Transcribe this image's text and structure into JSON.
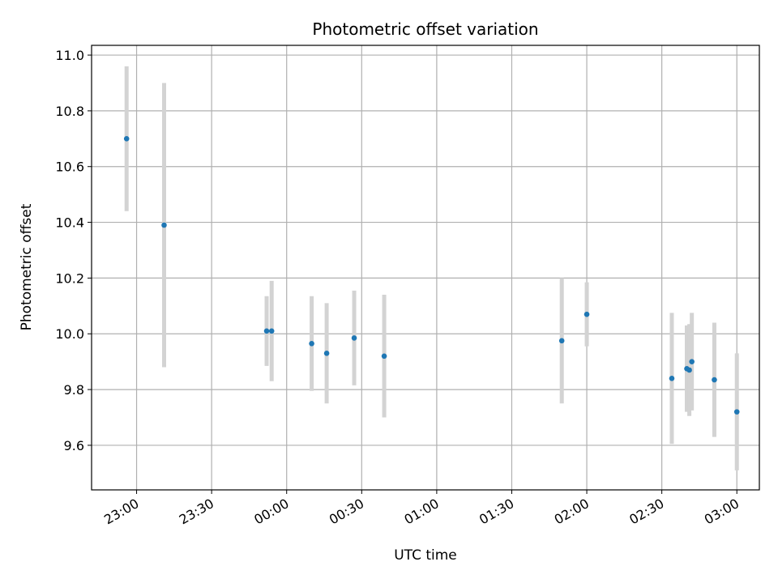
{
  "chart_data": {
    "type": "scatter",
    "title": "Photometric offset variation",
    "xlabel": "UTC time",
    "ylabel": "Photometric offset",
    "x_axis_kind": "time",
    "xlim": [
      "22:42",
      "03:09"
    ],
    "ylim": [
      9.44,
      11.035
    ],
    "grid": true,
    "x_ticks": [
      "23:00",
      "23:30",
      "00:00",
      "00:30",
      "01:00",
      "01:30",
      "02:00",
      "02:30",
      "03:00"
    ],
    "y_ticks": [
      "9.6",
      "9.8",
      "10.0",
      "10.2",
      "10.4",
      "10.6",
      "10.8",
      "11.0"
    ],
    "y_tick_values": [
      9.6,
      9.8,
      10.0,
      10.2,
      10.4,
      10.6,
      10.8,
      11.0
    ],
    "marker_color": "#1f77b4",
    "errorbar_color": "#d3d3d3",
    "grid_color": "#b0b0b0",
    "series": [
      {
        "points": [
          {
            "x": "22:56",
            "y": 10.7,
            "err": 0.26
          },
          {
            "x": "23:11",
            "y": 10.39,
            "err": 0.51
          },
          {
            "x": "23:52",
            "y": 10.01,
            "err": 0.125
          },
          {
            "x": "23:54",
            "y": 10.01,
            "err": 0.18
          },
          {
            "x": "00:10",
            "y": 9.965,
            "err": 0.17
          },
          {
            "x": "00:16",
            "y": 9.93,
            "err": 0.18
          },
          {
            "x": "00:27",
            "y": 9.985,
            "err": 0.17
          },
          {
            "x": "00:39",
            "y": 9.92,
            "err": 0.22
          },
          {
            "x": "01:50",
            "y": 9.975,
            "err": 0.225
          },
          {
            "x": "02:00",
            "y": 10.07,
            "err": 0.115
          },
          {
            "x": "02:34",
            "y": 9.84,
            "err": 0.235
          },
          {
            "x": "02:40",
            "y": 9.875,
            "err": 0.155
          },
          {
            "x": "02:41",
            "y": 9.87,
            "err": 0.165
          },
          {
            "x": "02:42",
            "y": 9.9,
            "err": 0.175
          },
          {
            "x": "02:51",
            "y": 9.835,
            "err": 0.205
          },
          {
            "x": "03:00",
            "y": 9.72,
            "err": 0.21
          }
        ]
      }
    ]
  }
}
